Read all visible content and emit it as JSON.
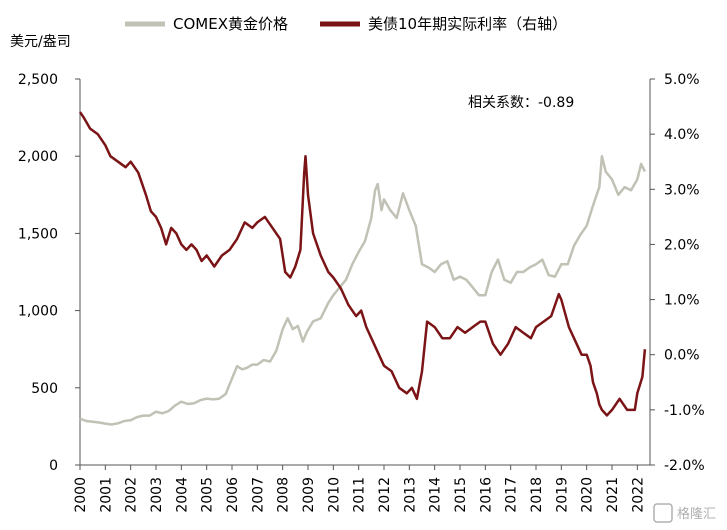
{
  "chart_data": {
    "type": "line",
    "y_left_unit": "美元/盎司",
    "annotation": "相关系数：-0.89",
    "watermark": "格隆汇",
    "x_tick_labels": [
      "2000",
      "2001",
      "2002",
      "2003",
      "2004",
      "2005",
      "2006",
      "2007",
      "2008",
      "2009",
      "2010",
      "2011",
      "2012",
      "2013",
      "2014",
      "2015",
      "2016",
      "2017",
      "2018",
      "2019",
      "2020",
      "2021",
      "2022"
    ],
    "y_left_ticks": [
      0,
      500,
      1000,
      1500,
      2000,
      2500
    ],
    "y_left_tick_labels": [
      "0",
      "500",
      "1,000",
      "1,500",
      "2,000",
      "2,500"
    ],
    "y_right_ticks": [
      -2,
      -1,
      0,
      1,
      2,
      3,
      4,
      5
    ],
    "y_right_tick_labels": [
      "-2.0%",
      "-1.0%",
      "0.0%",
      "1.0%",
      "2.0%",
      "3.0%",
      "4.0%",
      "5.0%"
    ],
    "y_left_range": [
      0,
      2500
    ],
    "y_right_range": [
      -2,
      5
    ],
    "x_range": [
      2000.0,
      2022.5
    ],
    "series": [
      {
        "name": "COMEX黄金价格",
        "axis": "left",
        "color": "#c2c1b5",
        "x": [
          2000.0,
          2000.25,
          2000.5,
          2000.75,
          2001.0,
          2001.25,
          2001.5,
          2001.75,
          2002.0,
          2002.25,
          2002.5,
          2002.75,
          2003.0,
          2003.25,
          2003.5,
          2003.75,
          2004.0,
          2004.25,
          2004.5,
          2004.75,
          2005.0,
          2005.25,
          2005.5,
          2005.75,
          2006.0,
          2006.2,
          2006.4,
          2006.6,
          2006.8,
          2007.0,
          2007.25,
          2007.5,
          2007.75,
          2008.0,
          2008.2,
          2008.4,
          2008.6,
          2008.8,
          2008.95,
          2009.2,
          2009.5,
          2009.8,
          2010.0,
          2010.25,
          2010.5,
          2010.75,
          2011.0,
          2011.25,
          2011.5,
          2011.65,
          2011.75,
          2011.9,
          2012.0,
          2012.25,
          2012.5,
          2012.75,
          2013.0,
          2013.25,
          2013.5,
          2013.75,
          2014.0,
          2014.25,
          2014.5,
          2014.75,
          2015.0,
          2015.25,
          2015.5,
          2015.75,
          2016.0,
          2016.25,
          2016.5,
          2016.75,
          2017.0,
          2017.25,
          2017.5,
          2017.75,
          2018.0,
          2018.25,
          2018.5,
          2018.75,
          2019.0,
          2019.25,
          2019.5,
          2019.75,
          2020.0,
          2020.25,
          2020.5,
          2020.6,
          2020.75,
          2021.0,
          2021.25,
          2021.5,
          2021.75,
          2022.0,
          2022.15,
          2022.3
        ],
        "values": [
          300,
          285,
          280,
          275,
          268,
          262,
          270,
          285,
          290,
          310,
          320,
          320,
          345,
          335,
          350,
          385,
          410,
          395,
          400,
          420,
          430,
          425,
          430,
          460,
          560,
          640,
          620,
          630,
          650,
          650,
          680,
          670,
          740,
          880,
          950,
          880,
          900,
          800,
          860,
          930,
          950,
          1050,
          1100,
          1150,
          1200,
          1300,
          1380,
          1450,
          1600,
          1780,
          1820,
          1650,
          1720,
          1650,
          1600,
          1760,
          1650,
          1550,
          1300,
          1280,
          1250,
          1300,
          1320,
          1200,
          1220,
          1200,
          1150,
          1100,
          1100,
          1250,
          1330,
          1200,
          1180,
          1250,
          1250,
          1280,
          1300,
          1330,
          1230,
          1220,
          1300,
          1300,
          1420,
          1490,
          1550,
          1680,
          1800,
          2000,
          1900,
          1850,
          1750,
          1800,
          1780,
          1850,
          1950,
          1900
        ]
      },
      {
        "name": "美债10年期实际利率（右轴）",
        "axis": "right",
        "color": "#7b1416",
        "x": [
          2000.0,
          2000.15,
          2000.4,
          2000.7,
          2001.0,
          2001.2,
          2001.5,
          2001.8,
          2002.0,
          2002.3,
          2002.6,
          2002.8,
          2003.0,
          2003.2,
          2003.4,
          2003.6,
          2003.8,
          2004.0,
          2004.2,
          2004.4,
          2004.6,
          2004.8,
          2005.0,
          2005.3,
          2005.6,
          2005.9,
          2006.2,
          2006.5,
          2006.8,
          2007.0,
          2007.3,
          2007.6,
          2007.9,
          2008.1,
          2008.3,
          2008.5,
          2008.7,
          2008.85,
          2008.9,
          2009.0,
          2009.2,
          2009.5,
          2009.8,
          2010.0,
          2010.3,
          2010.6,
          2010.9,
          2011.1,
          2011.3,
          2011.6,
          2011.8,
          2012.0,
          2012.3,
          2012.6,
          2012.9,
          2013.1,
          2013.3,
          2013.5,
          2013.7,
          2014.0,
          2014.3,
          2014.6,
          2014.9,
          2015.2,
          2015.5,
          2015.8,
          2016.0,
          2016.3,
          2016.6,
          2016.9,
          2017.2,
          2017.5,
          2017.8,
          2018.0,
          2018.3,
          2018.6,
          2018.9,
          2019.0,
          2019.3,
          2019.5,
          2019.8,
          2020.0,
          2020.15,
          2020.25,
          2020.4,
          2020.5,
          2020.6,
          2020.8,
          2021.0,
          2021.3,
          2021.6,
          2021.9,
          2022.0,
          2022.2,
          2022.3
        ],
        "values": [
          4.4,
          4.3,
          4.1,
          4.0,
          3.8,
          3.6,
          3.5,
          3.4,
          3.5,
          3.3,
          2.9,
          2.6,
          2.5,
          2.3,
          2.0,
          2.3,
          2.2,
          2.0,
          1.9,
          2.0,
          1.9,
          1.7,
          1.8,
          1.6,
          1.8,
          1.9,
          2.1,
          2.4,
          2.3,
          2.4,
          2.5,
          2.3,
          2.1,
          1.5,
          1.4,
          1.6,
          1.9,
          3.3,
          3.6,
          2.9,
          2.2,
          1.8,
          1.5,
          1.4,
          1.2,
          0.9,
          0.7,
          0.8,
          0.5,
          0.2,
          0.0,
          -0.2,
          -0.3,
          -0.6,
          -0.7,
          -0.6,
          -0.8,
          -0.3,
          0.6,
          0.5,
          0.3,
          0.3,
          0.5,
          0.4,
          0.5,
          0.6,
          0.6,
          0.2,
          0.0,
          0.2,
          0.5,
          0.4,
          0.3,
          0.5,
          0.6,
          0.7,
          1.1,
          1.0,
          0.5,
          0.3,
          0.0,
          0.0,
          -0.2,
          -0.5,
          -0.7,
          -0.9,
          -1.0,
          -1.1,
          -1.0,
          -0.8,
          -1.0,
          -1.0,
          -0.7,
          -0.4,
          0.1
        ]
      }
    ]
  }
}
